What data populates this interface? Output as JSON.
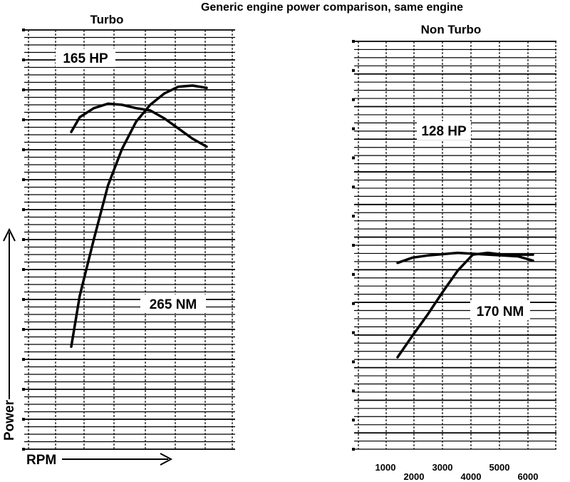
{
  "title": "Generic engine power comparison, same engine",
  "y_axis_label": "Power",
  "x_axis_label": "RPM",
  "chart_data": [
    {
      "type": "line",
      "title": "Turbo",
      "series": [
        {
          "name": "165 HP",
          "x": [
            1200,
            1500,
            2000,
            2500,
            3000,
            3500,
            4000,
            4500,
            5000,
            5500,
            6000
          ],
          "y": [
            41,
            43.6,
            45.2,
            46,
            45.8,
            45.2,
            44.8,
            43.4,
            41.6,
            39.8,
            38.4
          ]
        },
        {
          "name": "265 NM",
          "x": [
            1200,
            1500,
            2000,
            2500,
            3000,
            3500,
            4000,
            4500,
            5000,
            5500,
            6000
          ],
          "y": [
            3,
            12,
            22,
            31.5,
            38,
            42.8,
            45.8,
            47.8,
            49,
            49.2,
            48.8
          ]
        }
      ]
    },
    {
      "type": "line",
      "title": "Non Turbo",
      "xticks": [
        1000,
        2000,
        3000,
        4000,
        5000,
        6000
      ],
      "series": [
        {
          "name": "128 HP",
          "x": [
            1500,
            2000,
            2500,
            3000,
            3500,
            4000,
            4500,
            5000,
            5500,
            6000
          ],
          "y": [
            28.1,
            29.3,
            29.8,
            30.1,
            30.4,
            30.2,
            30,
            29.8,
            29.6,
            28.6
          ]
        },
        {
          "name": "170 NM",
          "x": [
            1500,
            2000,
            2500,
            3000,
            3500,
            4000,
            4500,
            5000,
            5500,
            6000
          ],
          "y": [
            6.4,
            11.4,
            16.2,
            21.4,
            26.3,
            30,
            30.4,
            30,
            30,
            30
          ]
        }
      ]
    }
  ]
}
